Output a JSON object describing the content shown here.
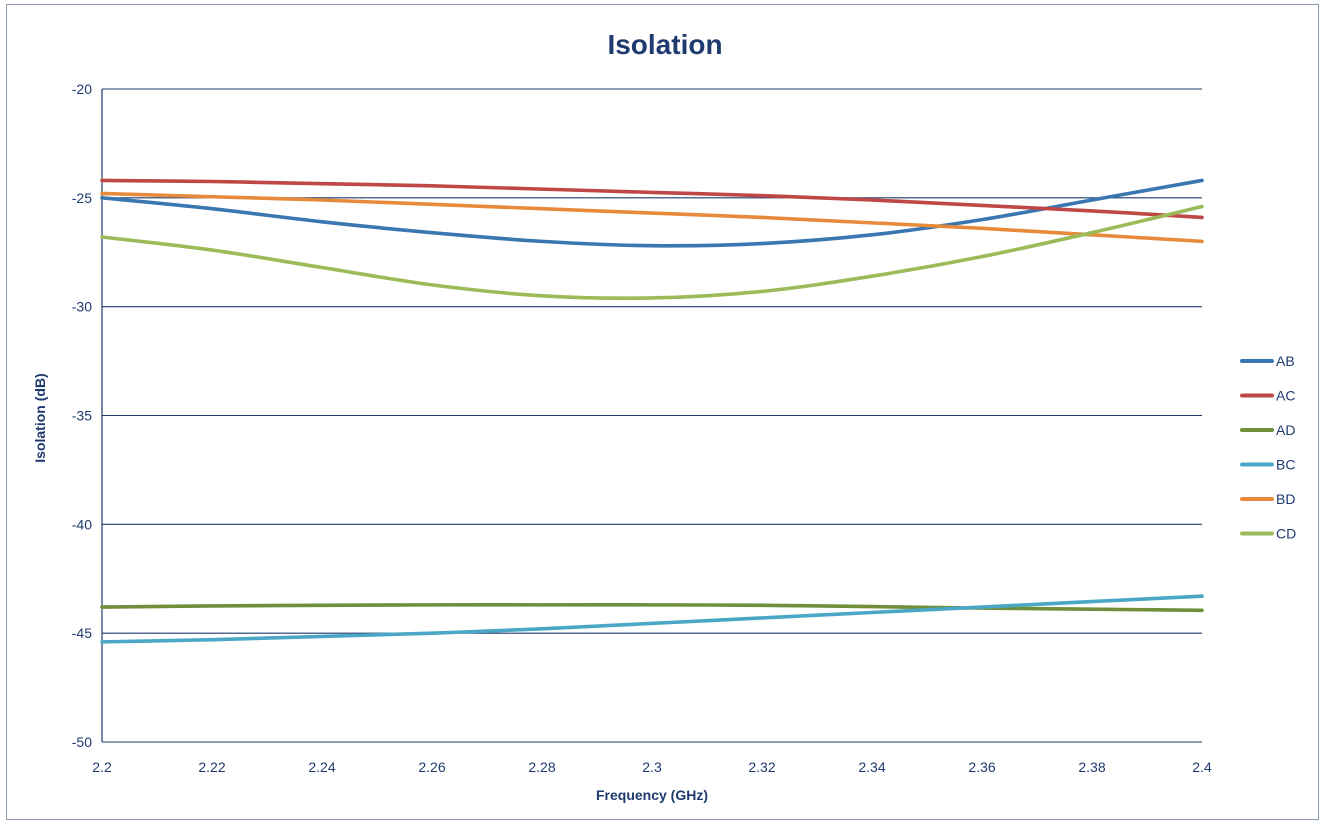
{
  "chart_data": {
    "type": "line",
    "title": "Isolation",
    "xlabel": "Frequency (GHz)",
    "ylabel": "Isolation (dB)",
    "xlim": [
      2.2,
      2.4
    ],
    "ylim": [
      -50,
      -20
    ],
    "x_ticks": [
      "2.2",
      "2.22",
      "2.24",
      "2.26",
      "2.28",
      "2.3",
      "2.32",
      "2.34",
      "2.36",
      "2.38",
      "2.4"
    ],
    "y_ticks": [
      "-20",
      "-25",
      "-30",
      "-35",
      "-40",
      "-45",
      "-50"
    ],
    "grid": "horizontal",
    "legend_position": "right",
    "x": [
      2.2,
      2.22,
      2.24,
      2.26,
      2.28,
      2.3,
      2.32,
      2.34,
      2.36,
      2.38,
      2.4
    ],
    "series": [
      {
        "name": "AB",
        "color": "#3a76b0",
        "values": [
          -25.0,
          -25.5,
          -26.1,
          -26.6,
          -27.0,
          -27.2,
          -27.1,
          -26.7,
          -26.0,
          -25.1,
          -24.2
        ]
      },
      {
        "name": "AC",
        "color": "#bf4745",
        "values": [
          -24.2,
          -24.25,
          -24.35,
          -24.45,
          -24.6,
          -24.75,
          -24.9,
          -25.1,
          -25.35,
          -25.6,
          -25.9
        ]
      },
      {
        "name": "AD",
        "color": "#6f8f3a",
        "values": [
          -43.8,
          -43.75,
          -43.72,
          -43.7,
          -43.7,
          -43.7,
          -43.72,
          -43.78,
          -43.85,
          -43.9,
          -43.95
        ]
      },
      {
        "name": "BC",
        "color": "#4aa8c6",
        "values": [
          -45.4,
          -45.3,
          -45.15,
          -45.0,
          -44.8,
          -44.55,
          -44.3,
          -44.05,
          -43.8,
          -43.55,
          -43.3
        ]
      },
      {
        "name": "BD",
        "color": "#e88a3b",
        "values": [
          -24.8,
          -24.95,
          -25.1,
          -25.3,
          -25.5,
          -25.7,
          -25.9,
          -26.15,
          -26.4,
          -26.7,
          -27.0
        ]
      },
      {
        "name": "CD",
        "color": "#9bbb59",
        "values": [
          -26.8,
          -27.4,
          -28.2,
          -29.0,
          -29.5,
          -29.6,
          -29.3,
          -28.6,
          -27.7,
          -26.6,
          -25.4
        ]
      }
    ]
  }
}
